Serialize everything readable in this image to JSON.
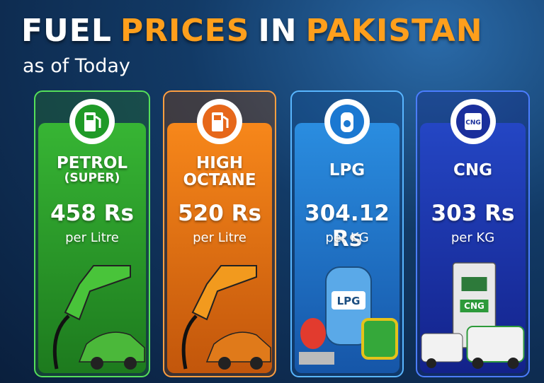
{
  "header": {
    "title": [
      "FUEL",
      "PRICES",
      "IN",
      "PAKISTAN"
    ],
    "subtitle": "as of Today"
  },
  "cards": [
    {
      "name": [
        "PETROL",
        "(SUPER)"
      ],
      "price": "458 Rs",
      "unit": "per Litre"
    },
    {
      "name": [
        "HIGH",
        "OCTANE"
      ],
      "price": "520 Rs",
      "unit": "per Litre"
    },
    {
      "name": [
        "LPG"
      ],
      "price": "304.12 Rs",
      "unit": "per KG",
      "illustration_label": "LPG"
    },
    {
      "name": [
        "CNG"
      ],
      "price": "303 Rs",
      "unit": "per KG",
      "icon_label": "CNG",
      "illustration_label": "CNG"
    }
  ]
}
